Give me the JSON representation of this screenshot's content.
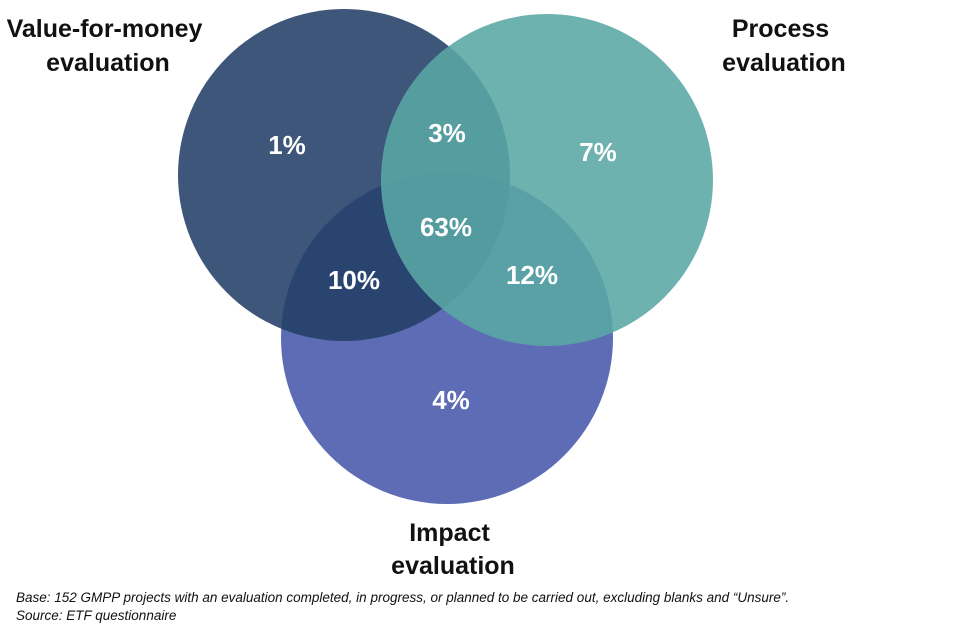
{
  "sets": [
    {
      "key": "vfm",
      "label_lines": [
        "Value-for-money",
        "evaluation"
      ],
      "color": "#233f66"
    },
    {
      "key": "process",
      "label_lines": [
        "Process",
        "evaluation"
      ],
      "color": "#5aa7a5"
    },
    {
      "key": "impact",
      "label_lines": [
        "Impact",
        "evaluation"
      ],
      "color": "#4f5fae"
    }
  ],
  "regions": {
    "vfm_only": "1%",
    "vfm_process": "3%",
    "process_only": "7%",
    "all_three": "63%",
    "vfm_impact": "10%",
    "process_impact": "12%",
    "impact_only": "4%"
  },
  "footnote": {
    "base": "Base: 152 GMPP projects with an evaluation completed, in progress, or planned to be carried out, excluding blanks and “Unsure”.",
    "source": "Source: ETF questionnaire"
  }
}
